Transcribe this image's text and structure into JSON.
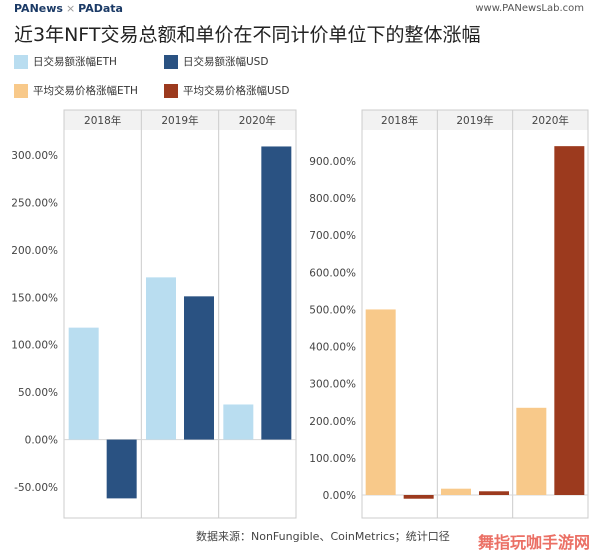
{
  "header": {
    "brand_left": "PANews",
    "brand_sep": "×",
    "brand_left2": "PAData",
    "brand_right": "www.PANewsLab.com"
  },
  "title": "近3年NFT交易总额和单价在不同计价单位下的整体涨幅",
  "legend": [
    {
      "label": "日交易额涨幅ETH",
      "color": "#b9ddf0"
    },
    {
      "label": "日交易额涨幅USD",
      "color": "#2a5282"
    },
    {
      "label": "平均交易价格涨幅ETH",
      "color": "#f8c98a"
    },
    {
      "label": "平均交易价格涨幅USD",
      "color": "#9c3a1e"
    }
  ],
  "chart_data": [
    {
      "type": "bar",
      "categories": [
        "2018年",
        "2019年",
        "2020年"
      ],
      "series": [
        {
          "name": "日交易额涨幅ETH",
          "values": [
            118,
            171,
            37
          ],
          "color": "#b9ddf0"
        },
        {
          "name": "日交易额涨幅USD",
          "values": [
            -62,
            151,
            309
          ],
          "color": "#2a5282"
        }
      ],
      "ylim": [
        -50,
        300
      ],
      "yticks": [
        -50,
        0,
        50,
        100,
        150,
        200,
        250,
        300
      ],
      "ytick_labels": [
        "-50.00%",
        "0.00%",
        "50.00%",
        "100.00%",
        "150.00%",
        "200.00%",
        "250.00%",
        "300.00%"
      ],
      "grid": false
    },
    {
      "type": "bar",
      "categories": [
        "2018年",
        "2019年",
        "2020年"
      ],
      "series": [
        {
          "name": "平均交易价格涨幅ETH",
          "values": [
            500,
            17,
            235
          ],
          "color": "#f8c98a"
        },
        {
          "name": "平均交易价格涨幅USD",
          "values": [
            -10,
            10,
            940
          ],
          "color": "#9c3a1e"
        }
      ],
      "ylim": [
        0,
        900
      ],
      "yticks": [
        0,
        100,
        200,
        300,
        400,
        500,
        600,
        700,
        800,
        900
      ],
      "ytick_labels": [
        "0.00%",
        "100.00%",
        "200.00%",
        "300.00%",
        "400.00%",
        "500.00%",
        "600.00%",
        "700.00%",
        "800.00%",
        "900.00%"
      ],
      "grid": false
    }
  ],
  "footer": "数据来源：NonFungible、CoinMetrics；统计口径",
  "watermark": "舞指玩咖手游网"
}
